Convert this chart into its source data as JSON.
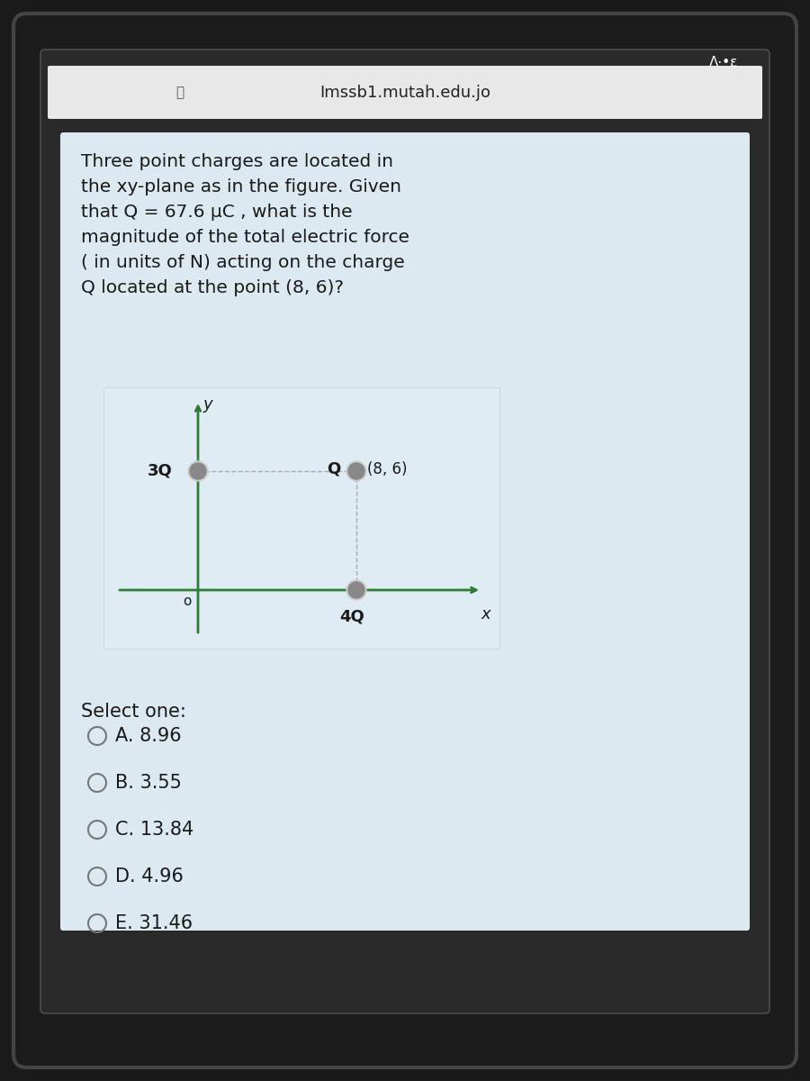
{
  "bg_outer": "#1a1a1a",
  "bg_phone": "#2a2a2a",
  "bg_card": "#dce9f0",
  "bg_figure": "#e8f0f5",
  "bg_white_strip": "#f0f0f0",
  "url_text": "Imssb1.mutah.edu.jo",
  "question_text": "Three point charges are located in\nthe xy-plane as in the figure. Given\nthat Q = 67.6 μC , what is the\nmagnitude of the total electric force\n( in units of N) acting on the charge\nQ located at the point (8, 6)?",
  "select_text": "Select one:",
  "options": [
    "A. 8.96",
    "B. 3.55",
    "C. 13.84",
    "D. 4.96",
    "E. 31.46"
  ],
  "charge_3Q_label": "3Q",
  "charge_4Q_label": "4Q",
  "charge_Q_label": "Q",
  "point_label": "(8, 6)",
  "axis_x_label": "x",
  "axis_y_label": "y",
  "axis_origin_label": "o",
  "axis_color": "#2e7d32",
  "dot_color": "#888888",
  "dot_3Q_color": "#888888",
  "dot_4Q_color": "#888888",
  "dot_Q_color": "#888888",
  "text_color": "#1a1a1a",
  "question_color": "#1a1a1a",
  "title_bg": "#ffffff"
}
